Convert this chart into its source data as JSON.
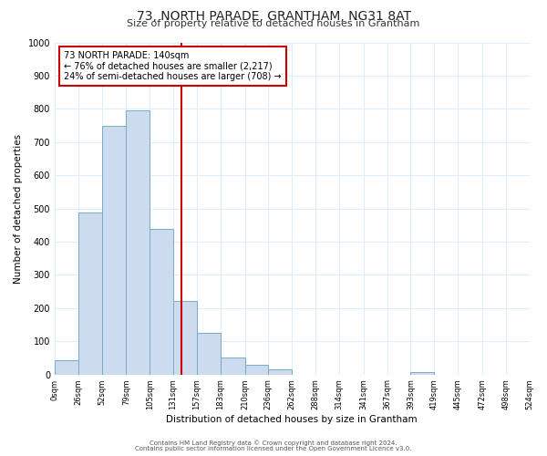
{
  "title": "73, NORTH PARADE, GRANTHAM, NG31 8AT",
  "subtitle": "Size of property relative to detached houses in Grantham",
  "xlabel": "Distribution of detached houses by size in Grantham",
  "ylabel": "Number of detached properties",
  "bar_edges": [
    0,
    26,
    52,
    79,
    105,
    131,
    157,
    183,
    210,
    236,
    262,
    288,
    314,
    341,
    367,
    393,
    419,
    445,
    472,
    498,
    524
  ],
  "bar_heights": [
    43,
    487,
    750,
    795,
    437,
    220,
    126,
    52,
    29,
    16,
    0,
    0,
    0,
    0,
    0,
    8,
    0,
    0,
    0,
    0
  ],
  "bar_color": "#ccdcee",
  "bar_edge_color": "#7aaac8",
  "vline_color": "#cc0000",
  "vline_x": 140,
  "annotation_line1": "73 NORTH PARADE: 140sqm",
  "annotation_line2": "← 76% of detached houses are smaller (2,217)",
  "annotation_line3": "24% of semi-detached houses are larger (708) →",
  "annotation_box_edgecolor": "#cc0000",
  "ylim": [
    0,
    1000
  ],
  "yticks": [
    0,
    100,
    200,
    300,
    400,
    500,
    600,
    700,
    800,
    900,
    1000
  ],
  "tick_labels": [
    "0sqm",
    "26sqm",
    "52sqm",
    "79sqm",
    "105sqm",
    "131sqm",
    "157sqm",
    "183sqm",
    "210sqm",
    "236sqm",
    "262sqm",
    "288sqm",
    "314sqm",
    "341sqm",
    "367sqm",
    "393sqm",
    "419sqm",
    "445sqm",
    "472sqm",
    "498sqm",
    "524sqm"
  ],
  "footer_line1": "Contains HM Land Registry data © Crown copyright and database right 2024.",
  "footer_line2": "Contains public sector information licensed under the Open Government Licence v3.0.",
  "background_color": "#ffffff",
  "grid_color": "#ddeeff",
  "title_fontsize": 10,
  "subtitle_fontsize": 8,
  "axis_label_fontsize": 7.5,
  "tick_fontsize": 6,
  "annotation_fontsize": 7,
  "footer_fontsize": 5
}
